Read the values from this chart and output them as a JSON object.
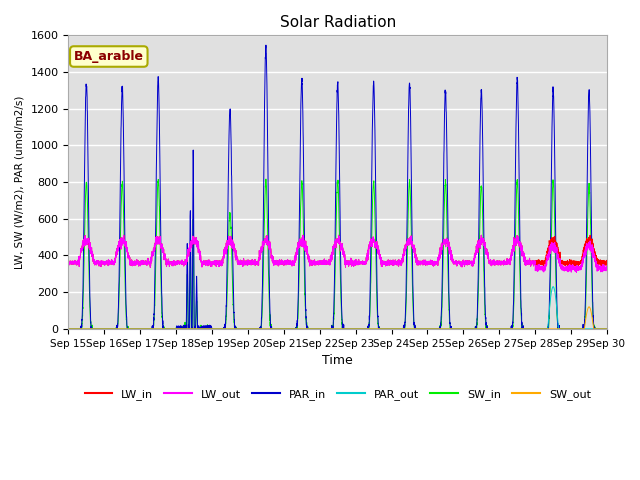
{
  "title": "Solar Radiation",
  "xlabel": "Time",
  "ylabel": "LW, SW (W/m2), PAR (umol/m2/s)",
  "annotation": "BA_arable",
  "ylim": [
    0,
    1600
  ],
  "yticks": [
    0,
    200,
    400,
    600,
    800,
    1000,
    1200,
    1400,
    1600
  ],
  "x_tick_labels": [
    "Sep 15",
    "Sep 16",
    "Sep 17",
    "Sep 18",
    "Sep 19",
    "Sep 20",
    "Sep 21",
    "Sep 22",
    "Sep 23",
    "Sep 24",
    "Sep 25",
    "Sep 26",
    "Sep 27",
    "Sep 28",
    "Sep 29",
    "Sep 30"
  ],
  "colors": {
    "LW_in": "#ff0000",
    "LW_out": "#ff00ff",
    "PAR_in": "#0000cc",
    "PAR_out": "#00cccc",
    "SW_in": "#00ee00",
    "SW_out": "#ffaa00"
  },
  "plot_bg": "#e0e0e0",
  "par_in_peaks": [
    1340,
    1320,
    1360,
    0,
    1200,
    1540,
    1360,
    1340,
    1350,
    1340,
    1300,
    1300,
    1360,
    1300,
    1300
  ],
  "sw_in_peaks": [
    800,
    790,
    810,
    0,
    630,
    800,
    800,
    800,
    800,
    800,
    800,
    780,
    800,
    800,
    780
  ],
  "day18_par_peaks": [
    470,
    650,
    980,
    270
  ],
  "day18_sw_peaks": [
    290,
    390,
    580,
    160
  ],
  "day19_par_peaks": [
    1200
  ],
  "day19_sw_peaks": [
    630
  ],
  "lw_base": 360,
  "lw_day_peak_add": 120,
  "par_out_day": 13,
  "par_out_peak": 230,
  "sw_out_day": 14,
  "sw_out_peak": 120
}
